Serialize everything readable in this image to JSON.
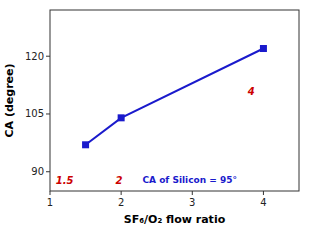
{
  "chart_data": {
    "type": "line",
    "x": [
      1.5,
      2.0,
      4.0
    ],
    "values": [
      97,
      104,
      122
    ],
    "color": "#1a1acc",
    "marker": "square",
    "xlabel": "SF₆/O₂ flow ratio",
    "ylabel": "CA (degree)",
    "xlim": [
      1,
      4.5
    ],
    "ylim": [
      85,
      132
    ],
    "xticks": [
      1,
      2,
      3,
      4
    ],
    "yticks": [
      90,
      105,
      120
    ],
    "annotations": [
      {
        "text": "CA of Silicon = 95°",
        "x": 2.3,
        "y": 86.5,
        "color": "#1a1acc"
      },
      {
        "text": "1.5",
        "x": 1.08,
        "y": 86.2,
        "color": "#cc0000"
      },
      {
        "text": "2",
        "x": 1.92,
        "y": 86.2,
        "color": "#cc0000"
      },
      {
        "text": "4",
        "x": 3.78,
        "y": 109.5,
        "color": "#cc0000"
      }
    ]
  }
}
